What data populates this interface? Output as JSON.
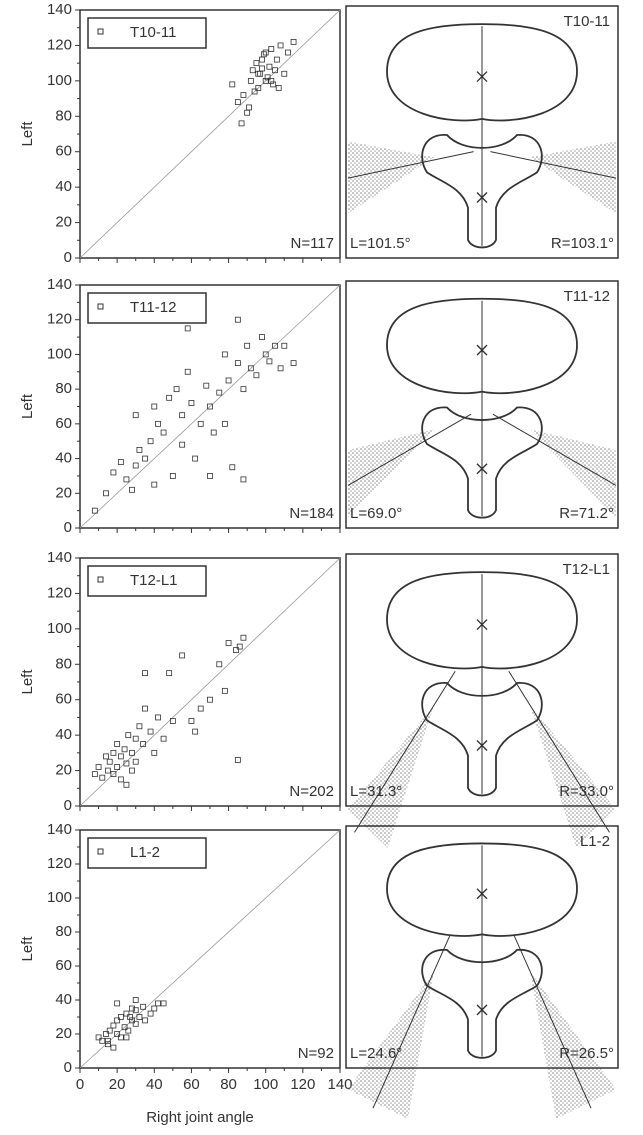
{
  "chart_data": [
    {
      "type": "scatter",
      "ylabel": "Left",
      "n_label": "N=117",
      "xlim": [
        0,
        140
      ],
      "ylim": [
        0,
        140
      ],
      "xticks": [
        0,
        20,
        40,
        60,
        80,
        100,
        120,
        140
      ],
      "yticks": [
        0,
        20,
        40,
        60,
        80,
        100,
        120,
        140
      ],
      "series": [
        {
          "name": "T10-11",
          "color": "#333333",
          "x": [
            82,
            85,
            88,
            90,
            92,
            93,
            95,
            96,
            97,
            98,
            99,
            100,
            101,
            102,
            103,
            104,
            105,
            106,
            107,
            108,
            110,
            112,
            115,
            87,
            94,
            100,
            96,
            103,
            91,
            98
          ],
          "y": [
            98,
            88,
            92,
            82,
            100,
            106,
            110,
            96,
            104,
            112,
            115,
            100,
            102,
            108,
            118,
            98,
            106,
            112,
            96,
            120,
            104,
            116,
            122,
            76,
            94,
            116,
            104,
            100,
            85,
            107
          ]
        }
      ]
    },
    {
      "type": "scatter",
      "ylabel": "Left",
      "n_label": "N=184",
      "xlim": [
        0,
        140
      ],
      "ylim": [
        0,
        140
      ],
      "xticks": [
        0,
        20,
        40,
        60,
        80,
        100,
        120,
        140
      ],
      "yticks": [
        0,
        20,
        40,
        60,
        80,
        100,
        120,
        140
      ],
      "series": [
        {
          "name": "T11-12",
          "color": "#333333",
          "x": [
            8,
            14,
            18,
            22,
            25,
            28,
            30,
            32,
            35,
            38,
            40,
            42,
            45,
            48,
            50,
            52,
            55,
            58,
            60,
            62,
            65,
            68,
            70,
            72,
            75,
            78,
            80,
            82,
            85,
            88,
            90,
            92,
            95,
            98,
            100,
            102,
            105,
            108,
            110,
            115,
            58,
            40,
            85,
            70,
            55,
            30,
            78,
            88
          ],
          "y": [
            10,
            20,
            32,
            38,
            28,
            22,
            36,
            45,
            40,
            50,
            70,
            60,
            55,
            75,
            30,
            80,
            65,
            90,
            72,
            40,
            60,
            82,
            70,
            55,
            78,
            100,
            85,
            35,
            95,
            80,
            105,
            92,
            88,
            110,
            100,
            96,
            105,
            92,
            105,
            95,
            115,
            25,
            120,
            30,
            48,
            65,
            60,
            28
          ]
        }
      ]
    },
    {
      "type": "scatter",
      "ylabel": "Left",
      "n_label": "N=202",
      "xlim": [
        0,
        140
      ],
      "ylim": [
        0,
        140
      ],
      "xticks": [
        0,
        20,
        40,
        60,
        80,
        100,
        120,
        140
      ],
      "yticks": [
        0,
        20,
        40,
        60,
        80,
        100,
        120,
        140
      ],
      "series": [
        {
          "name": "T12-L1",
          "color": "#333333",
          "x": [
            8,
            10,
            12,
            14,
            15,
            16,
            18,
            18,
            20,
            20,
            22,
            22,
            24,
            25,
            26,
            28,
            28,
            30,
            30,
            32,
            34,
            35,
            38,
            40,
            42,
            45,
            48,
            55,
            60,
            65,
            70,
            75,
            80,
            84,
            86,
            88,
            85,
            78,
            62,
            50,
            35,
            25
          ],
          "y": [
            18,
            22,
            16,
            28,
            20,
            25,
            30,
            18,
            22,
            35,
            28,
            15,
            32,
            24,
            40,
            20,
            30,
            38,
            25,
            45,
            35,
            55,
            42,
            30,
            50,
            38,
            75,
            85,
            48,
            55,
            60,
            80,
            92,
            88,
            90,
            95,
            26,
            65,
            42,
            48,
            75,
            12
          ]
        }
      ]
    },
    {
      "type": "scatter",
      "ylabel": "Left",
      "n_label": "N=92",
      "xlabel": "Right joint angle",
      "xlim": [
        0,
        140
      ],
      "ylim": [
        0,
        140
      ],
      "xticks": [
        0,
        20,
        40,
        60,
        80,
        100,
        120,
        140
      ],
      "yticks": [
        0,
        20,
        40,
        60,
        80,
        100,
        120,
        140
      ],
      "series": [
        {
          "name": "L1-2",
          "color": "#333333",
          "x": [
            10,
            12,
            14,
            15,
            16,
            18,
            18,
            20,
            20,
            22,
            22,
            24,
            25,
            26,
            28,
            28,
            30,
            30,
            32,
            34,
            35,
            38,
            40,
            42,
            45,
            20,
            25,
            30,
            15,
            27
          ],
          "y": [
            18,
            16,
            20,
            14,
            22,
            12,
            25,
            20,
            28,
            18,
            30,
            24,
            32,
            22,
            28,
            35,
            26,
            34,
            30,
            36,
            28,
            32,
            35,
            38,
            38,
            38,
            18,
            40,
            16,
            30
          ]
        }
      ]
    }
  ],
  "diagrams": [
    {
      "left": "L=101.5°",
      "right": "R=103.1°"
    },
    {
      "left": "L=69.0°",
      "right": "R=71.2°"
    },
    {
      "left": "L=31.3°",
      "right": "R=33.0°"
    },
    {
      "left": "L=24.6°",
      "right": "R=26.5°"
    }
  ]
}
